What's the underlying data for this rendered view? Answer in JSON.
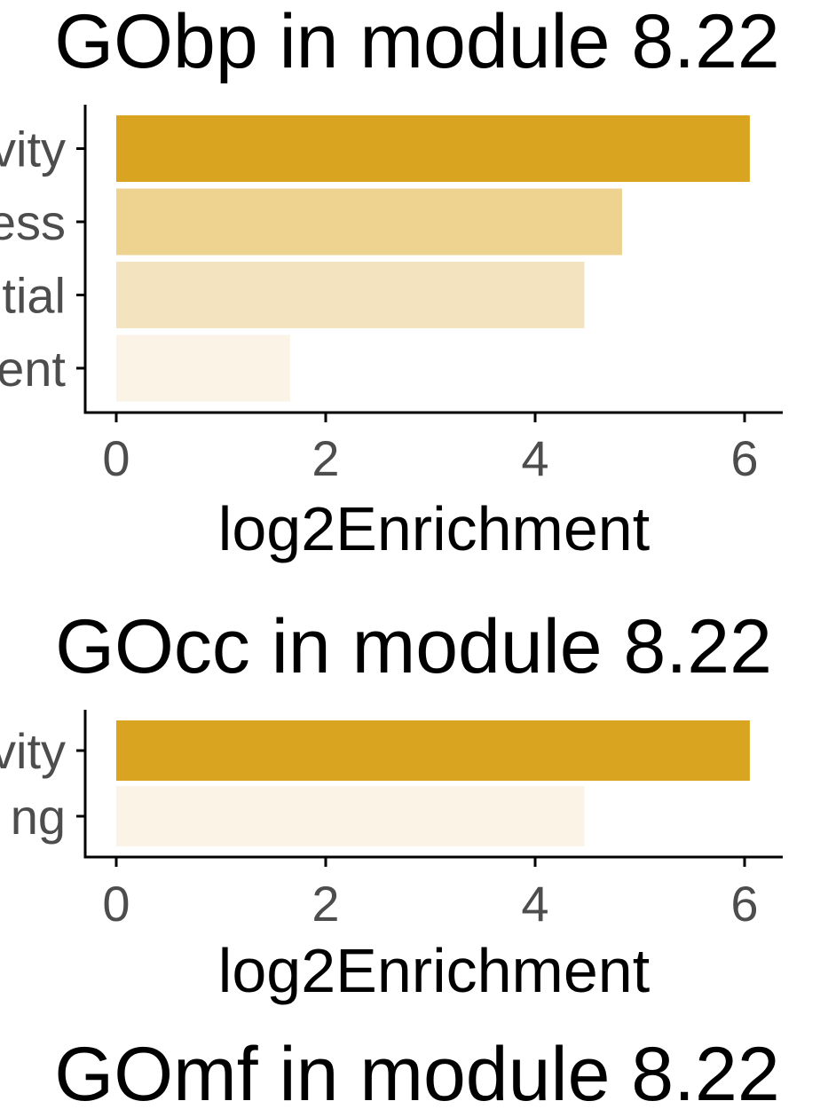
{
  "chart_data": [
    {
      "type": "bar",
      "orientation": "horizontal",
      "title": "GObp in module 8.22",
      "xlabel": "log2Enrichment",
      "categories": [
        "vity",
        "ess",
        "tial",
        "ent"
      ],
      "values": [
        6.05,
        4.83,
        4.47,
        1.66
      ],
      "colors": [
        "#D9A521",
        "#EDD290",
        "#F4E3BF",
        "#FBF3E6"
      ],
      "xlim": [
        -0.3,
        6.3
      ],
      "xticks": [
        "0",
        "2",
        "4",
        "6"
      ],
      "grid": false,
      "legend": "none"
    },
    {
      "type": "bar",
      "orientation": "horizontal",
      "title": "GOcc in module 8.22",
      "xlabel": "log2Enrichment",
      "categories": [
        "vity",
        "ng"
      ],
      "values": [
        6.05,
        4.47
      ],
      "colors": [
        "#D9A521",
        "#FBF3E6"
      ],
      "xlim": [
        -0.3,
        6.3
      ],
      "xticks": [
        "0",
        "2",
        "4",
        "6"
      ],
      "grid": false,
      "legend": "none"
    },
    {
      "type": "bar",
      "title": "GOmf in module 8.22"
    }
  ]
}
